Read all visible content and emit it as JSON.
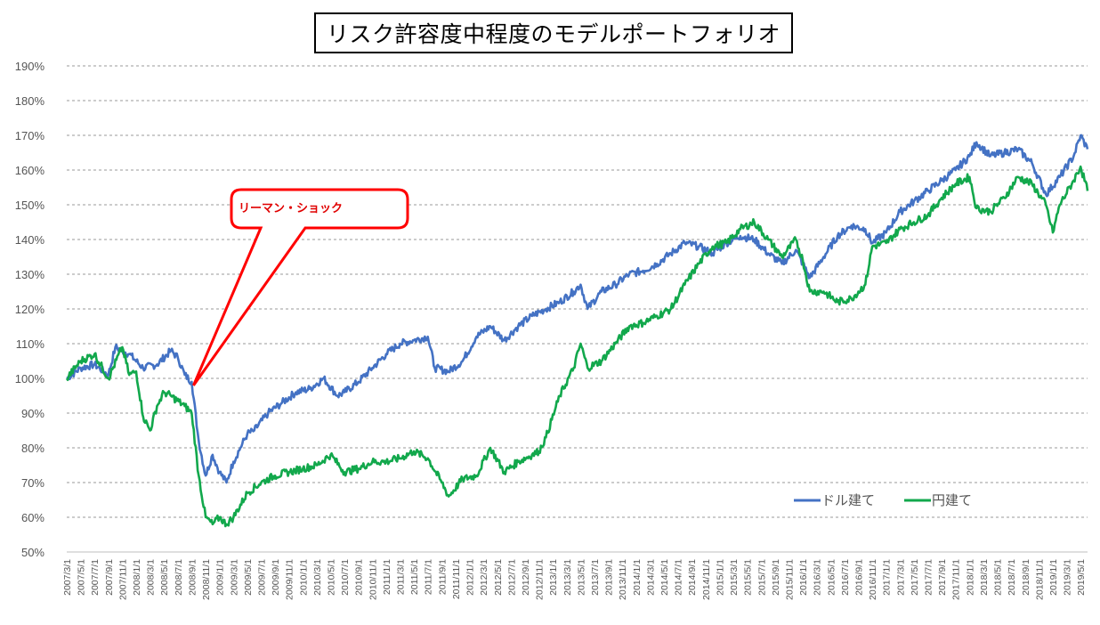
{
  "chart_data": {
    "type": "line",
    "title": "リスク許容度中程度のモデルポートフォリオ",
    "ylim": [
      0.5,
      1.9
    ],
    "y_tick_labels": [
      "50%",
      "60%",
      "70%",
      "80%",
      "90%",
      "100%",
      "110%",
      "120%",
      "130%",
      "140%",
      "150%",
      "160%",
      "170%",
      "180%",
      "190%"
    ],
    "x_tick_labels": [
      "2007/3/1",
      "2007/5/1",
      "2007/7/1",
      "2007/9/1",
      "2007/11/1",
      "2008/1/1",
      "2008/3/1",
      "2008/5/1",
      "2008/7/1",
      "2008/9/1",
      "2008/11/1",
      "2009/1/1",
      "2009/3/1",
      "2009/5/1",
      "2009/7/1",
      "2009/9/1",
      "2009/11/1",
      "2010/1/1",
      "2010/3/1",
      "2010/5/1",
      "2010/7/1",
      "2010/9/1",
      "2010/11/1",
      "2011/1/1",
      "2011/3/1",
      "2011/5/1",
      "2011/7/1",
      "2011/9/1",
      "2011/11/1",
      "2012/1/1",
      "2012/3/1",
      "2012/5/1",
      "2012/7/1",
      "2012/9/1",
      "2012/11/1",
      "2013/1/1",
      "2013/3/1",
      "2013/5/1",
      "2013/7/1",
      "2013/9/1",
      "2013/11/1",
      "2014/1/1",
      "2014/3/1",
      "2014/5/1",
      "2014/7/1",
      "2014/9/1",
      "2014/11/1",
      "2015/1/1",
      "2015/3/1",
      "2015/5/1",
      "2015/7/1",
      "2015/9/1",
      "2015/11/1",
      "2016/1/1",
      "2016/3/1",
      "2016/5/1",
      "2016/7/1",
      "2016/9/1",
      "2016/11/1",
      "2017/1/1",
      "2017/3/1",
      "2017/5/1",
      "2017/7/1",
      "2017/9/1",
      "2017/11/1",
      "2018/1/1",
      "2018/3/1",
      "2018/5/1",
      "2018/7/1",
      "2018/9/1",
      "2018/11/1",
      "2019/1/1",
      "2019/3/1",
      "2019/5/1"
    ],
    "grid": true,
    "legend_position": "bottom-right",
    "series": [
      {
        "name": "ドル建て",
        "color": "#4472c4",
        "x": [
          "2007/3",
          "2007/5",
          "2007/7",
          "2007/9",
          "2007/10",
          "2007/12",
          "2008/2",
          "2008/4",
          "2008/6",
          "2008/7",
          "2008/8",
          "2008/9",
          "2008/10",
          "2008/11",
          "2008/12",
          "2009/1",
          "2009/2",
          "2009/3",
          "2009/4",
          "2009/5",
          "2009/6",
          "2009/8",
          "2009/10",
          "2009/12",
          "2010/2",
          "2010/4",
          "2010/6",
          "2010/7",
          "2010/9",
          "2010/11",
          "2011/1",
          "2011/3",
          "2011/5",
          "2011/7",
          "2011/8",
          "2011/10",
          "2011/12",
          "2012/2",
          "2012/4",
          "2012/6",
          "2012/8",
          "2012/10",
          "2012/12",
          "2013/2",
          "2013/4",
          "2013/5",
          "2013/6",
          "2013/8",
          "2013/10",
          "2013/12",
          "2014/2",
          "2014/4",
          "2014/6",
          "2014/8",
          "2014/10",
          "2014/12",
          "2015/2",
          "2015/4",
          "2015/6",
          "2015/8",
          "2015/10",
          "2015/12",
          "2016/1",
          "2016/2",
          "2016/4",
          "2016/6",
          "2016/8",
          "2016/10",
          "2016/11",
          "2017/1",
          "2017/3",
          "2017/5",
          "2017/7",
          "2017/9",
          "2017/11",
          "2018/1",
          "2018/2",
          "2018/4",
          "2018/6",
          "2018/8",
          "2018/10",
          "2018/12",
          "2019/2",
          "2019/4",
          "2019/5",
          "2019/6"
        ],
        "y": [
          1.0,
          1.03,
          1.04,
          1.01,
          1.09,
          1.07,
          1.03,
          1.04,
          1.08,
          1.06,
          1.01,
          0.99,
          0.82,
          0.72,
          0.78,
          0.73,
          0.7,
          0.76,
          0.8,
          0.84,
          0.85,
          0.9,
          0.93,
          0.96,
          0.97,
          1.0,
          0.95,
          0.96,
          0.99,
          1.03,
          1.07,
          1.1,
          1.11,
          1.12,
          1.03,
          1.02,
          1.05,
          1.12,
          1.15,
          1.11,
          1.15,
          1.18,
          1.2,
          1.22,
          1.25,
          1.27,
          1.2,
          1.25,
          1.27,
          1.3,
          1.31,
          1.33,
          1.36,
          1.39,
          1.38,
          1.36,
          1.39,
          1.41,
          1.4,
          1.36,
          1.33,
          1.37,
          1.33,
          1.29,
          1.35,
          1.41,
          1.44,
          1.43,
          1.39,
          1.42,
          1.48,
          1.51,
          1.54,
          1.57,
          1.6,
          1.64,
          1.68,
          1.64,
          1.65,
          1.66,
          1.62,
          1.53,
          1.58,
          1.64,
          1.7,
          1.66
        ]
      },
      {
        "name": "円建て",
        "color": "#12a84c",
        "x": [
          "2007/3",
          "2007/5",
          "2007/7",
          "2007/9",
          "2007/11",
          "2007/12",
          "2008/1",
          "2008/2",
          "2008/3",
          "2008/4",
          "2008/5",
          "2008/6",
          "2008/8",
          "2008/9",
          "2008/10",
          "2008/11",
          "2008/12",
          "2009/1",
          "2009/2",
          "2009/3",
          "2009/5",
          "2009/7",
          "2009/9",
          "2009/11",
          "2010/1",
          "2010/3",
          "2010/5",
          "2010/7",
          "2010/9",
          "2010/11",
          "2011/1",
          "2011/3",
          "2011/5",
          "2011/7",
          "2011/9",
          "2011/10",
          "2011/12",
          "2012/2",
          "2012/4",
          "2012/6",
          "2012/8",
          "2012/10",
          "2012/11",
          "2012/12",
          "2013/2",
          "2013/4",
          "2013/5",
          "2013/6",
          "2013/8",
          "2013/10",
          "2013/12",
          "2014/2",
          "2014/4",
          "2014/6",
          "2014/8",
          "2014/10",
          "2014/12",
          "2015/2",
          "2015/4",
          "2015/6",
          "2015/8",
          "2015/10",
          "2015/12",
          "2016/1",
          "2016/2",
          "2016/4",
          "2016/6",
          "2016/8",
          "2016/10",
          "2016/11",
          "2017/1",
          "2017/3",
          "2017/5",
          "2017/7",
          "2017/9",
          "2017/11",
          "2018/1",
          "2018/2",
          "2018/4",
          "2018/6",
          "2018/8",
          "2018/10",
          "2018/12",
          "2019/1",
          "2019/2",
          "2019/4",
          "2019/5",
          "2019/6"
        ],
        "y": [
          1.0,
          1.05,
          1.07,
          1.0,
          1.09,
          1.01,
          1.02,
          0.89,
          0.85,
          0.92,
          0.96,
          0.95,
          0.92,
          0.9,
          0.72,
          0.6,
          0.58,
          0.6,
          0.58,
          0.6,
          0.67,
          0.7,
          0.72,
          0.73,
          0.74,
          0.75,
          0.78,
          0.73,
          0.74,
          0.76,
          0.76,
          0.77,
          0.79,
          0.77,
          0.7,
          0.66,
          0.71,
          0.72,
          0.8,
          0.73,
          0.76,
          0.78,
          0.79,
          0.83,
          0.95,
          1.03,
          1.1,
          1.03,
          1.05,
          1.1,
          1.15,
          1.16,
          1.18,
          1.2,
          1.27,
          1.33,
          1.38,
          1.39,
          1.43,
          1.45,
          1.4,
          1.35,
          1.4,
          1.34,
          1.25,
          1.25,
          1.22,
          1.23,
          1.27,
          1.38,
          1.39,
          1.43,
          1.45,
          1.47,
          1.52,
          1.56,
          1.58,
          1.49,
          1.48,
          1.52,
          1.58,
          1.56,
          1.5,
          1.42,
          1.5,
          1.57,
          1.61,
          1.54
        ]
      }
    ],
    "annotations": [
      {
        "text": "リーマン・ショック",
        "points_to": {
          "x": "2008/9",
          "y": 0.99
        }
      }
    ]
  }
}
